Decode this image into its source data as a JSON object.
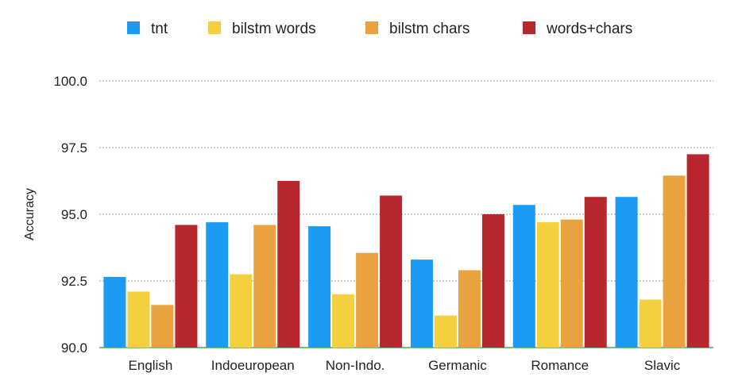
{
  "chart_data": {
    "type": "bar",
    "ylabel": "Accuracy",
    "ylim": [
      90.0,
      100.0
    ],
    "yticks": [
      "90.0",
      "92.5",
      "95.0",
      "97.5",
      "100.0"
    ],
    "legend_position": "top",
    "grid": true,
    "categories": [
      "English",
      "Indoeuropean",
      "Non-Indo.",
      "Germanic",
      "Romance",
      "Slavic"
    ],
    "series": [
      {
        "name": "tnt",
        "color": "#1c9bf5",
        "values": [
          92.65,
          94.7,
          94.55,
          93.3,
          95.35,
          95.65
        ]
      },
      {
        "name": "bilstm words",
        "color": "#f4d03f",
        "values": [
          92.1,
          92.75,
          92.0,
          91.2,
          94.7,
          91.8
        ]
      },
      {
        "name": "bilstm chars",
        "color": "#e8a33f",
        "values": [
          91.6,
          94.6,
          93.55,
          92.9,
          94.8,
          96.45
        ]
      },
      {
        "name": "words+chars",
        "color": "#b8272e",
        "values": [
          94.6,
          96.25,
          95.7,
          95.0,
          95.65,
          97.25
        ]
      }
    ]
  }
}
